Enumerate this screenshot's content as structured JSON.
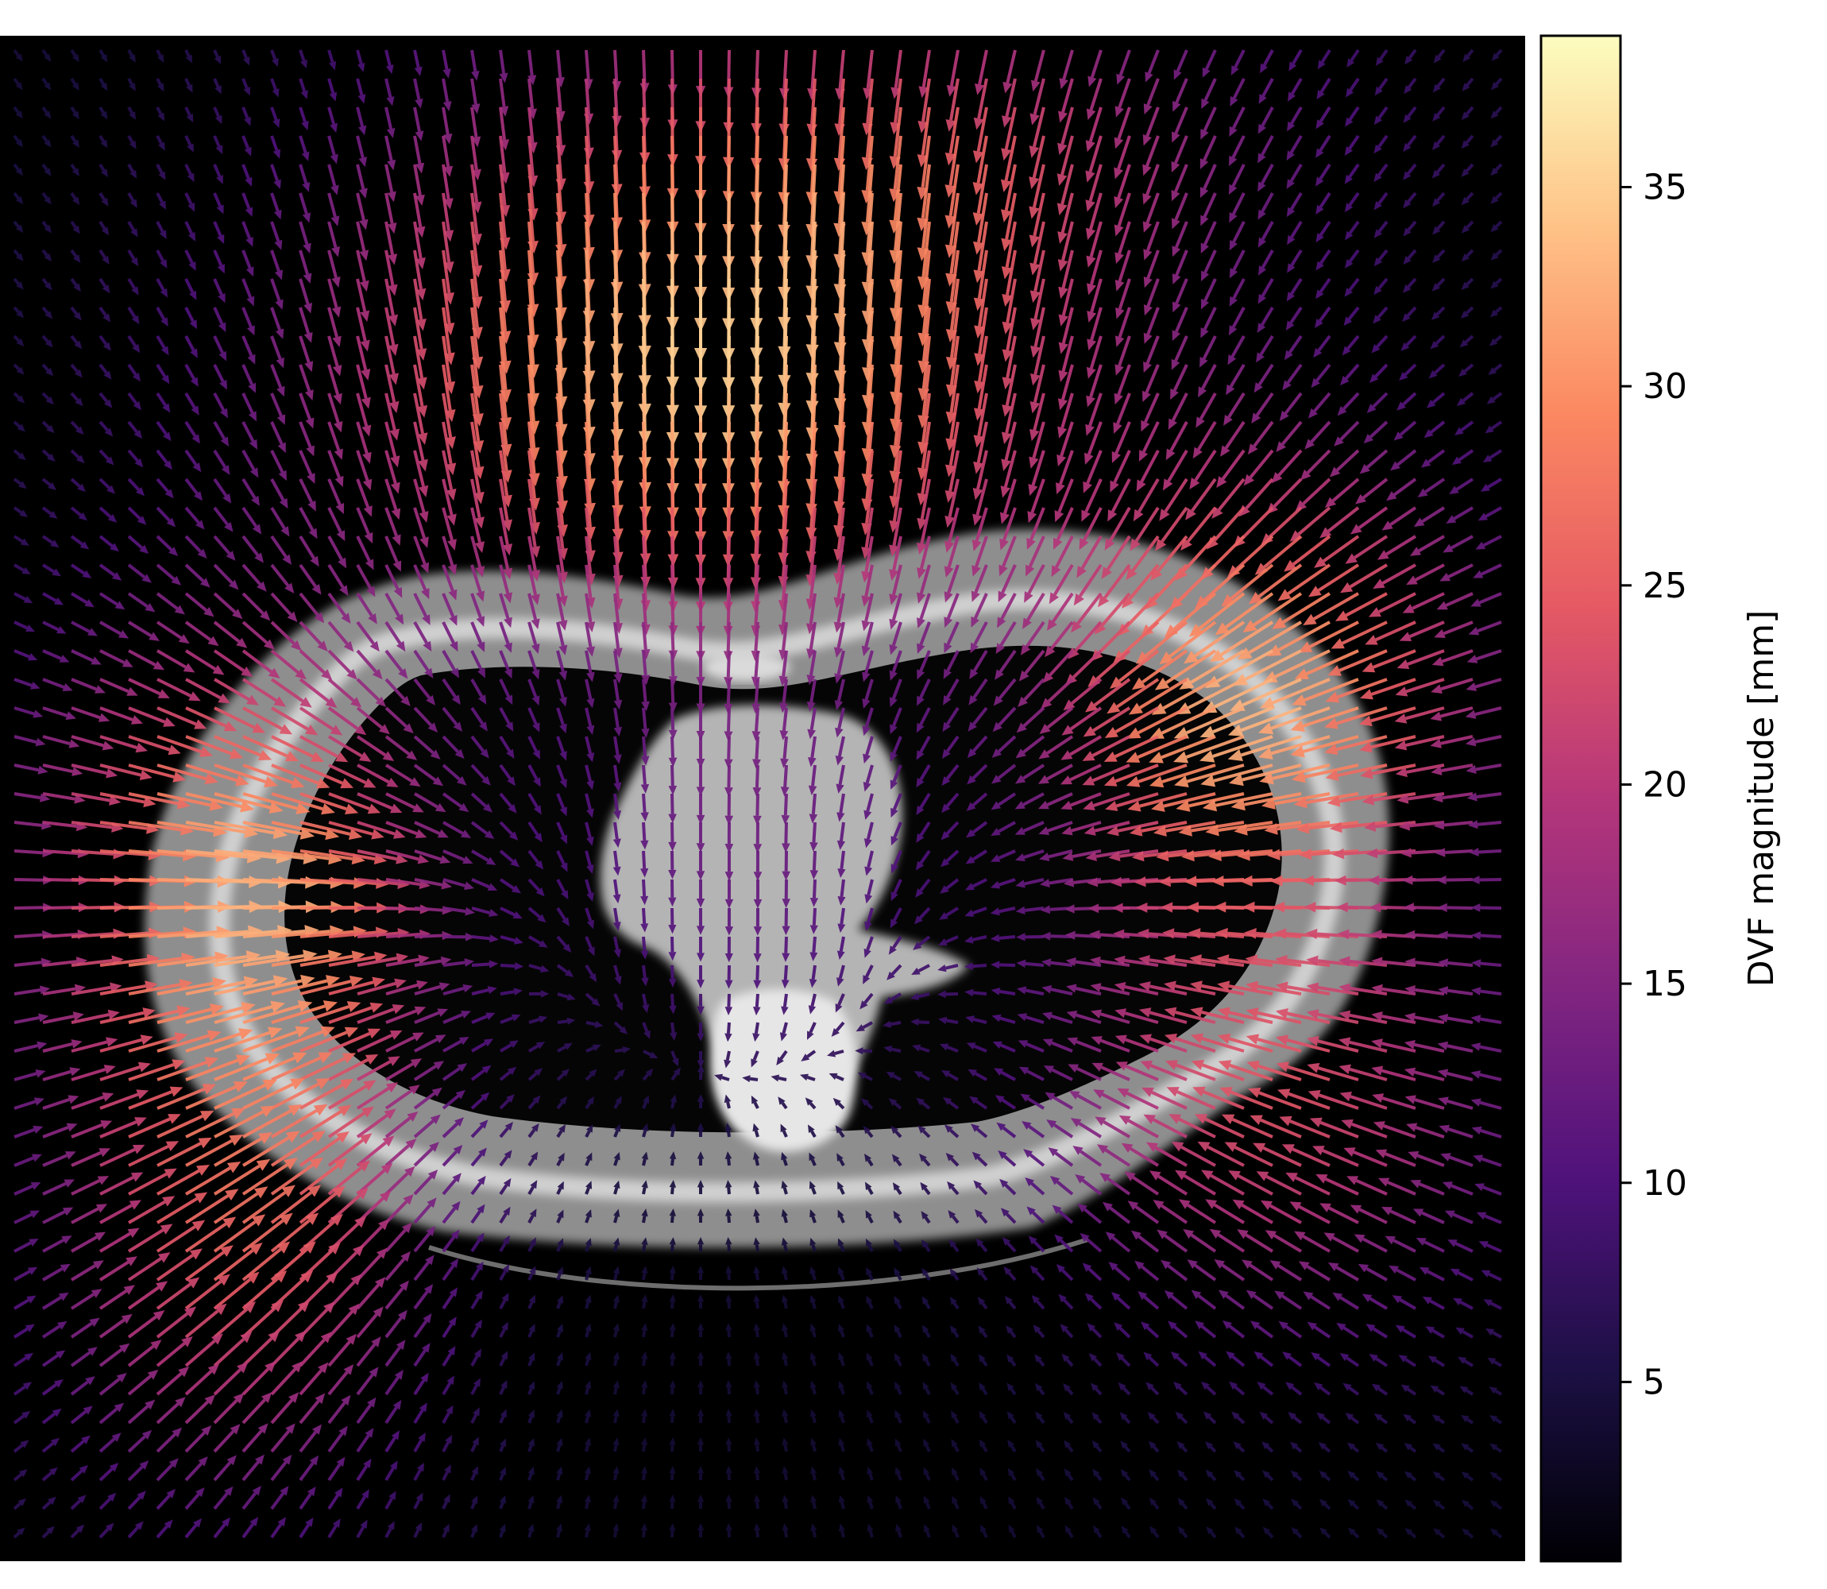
{
  "chart_data": {
    "type": "quiver",
    "background": "axial chest CT slice (grayscale)",
    "overlay": "displacement vector field arrows, colored by magnitude",
    "axes_visible": false,
    "colormap": "magma",
    "colorbar": {
      "label": "DVF magnitude [mm]",
      "range": [
        0.5,
        38.8
      ],
      "ticks": [
        5,
        10,
        15,
        20,
        25,
        30,
        35
      ],
      "tick_labels": [
        "5",
        "10",
        "15",
        "20",
        "25",
        "30",
        "35"
      ],
      "orientation": "vertical",
      "placement": "right"
    },
    "field": {
      "center": [
        0.46,
        0.56
      ],
      "max_magnitude_mm": 38,
      "regions": [
        {
          "location": "anterior chest wall (upper)",
          "magnitude_mm": 34,
          "direction": "posterior (downward)"
        },
        {
          "location": "left lateral chest wall",
          "magnitude_mm": 33,
          "direction": "medial (leftward)"
        },
        {
          "location": "right lateral chest wall",
          "magnitude_mm": 30,
          "direction": "medial (rightward)"
        },
        {
          "location": "posterior (lower)",
          "magnitude_mm": 24,
          "direction": "anterior (upward)"
        },
        {
          "location": "mediastinum / spine",
          "magnitude_mm": 12,
          "direction": "posterior (downward)"
        }
      ]
    }
  },
  "colors": {
    "image_background": "#000000",
    "body_tissue": "#8c8c8c",
    "bone": "#e8e8e8",
    "colormap_stops": [
      "#000004",
      "#1c1044",
      "#4f127b",
      "#812581",
      "#b5367a",
      "#e55964",
      "#fb8761",
      "#fec287",
      "#fcfdbf"
    ]
  }
}
